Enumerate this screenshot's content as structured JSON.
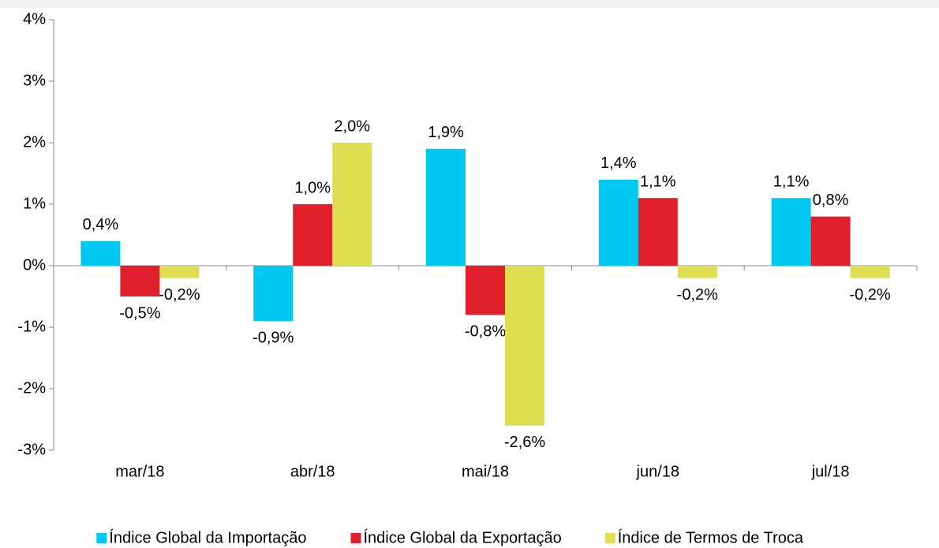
{
  "chart_data": {
    "type": "bar",
    "categories": [
      "mar/18",
      "abr/18",
      "mai/18",
      "jun/18",
      "jul/18"
    ],
    "series": [
      {
        "name": "Índice Global da Importação",
        "color": "#00c8f0",
        "values": [
          0.4,
          -0.9,
          1.9,
          1.4,
          1.1
        ],
        "value_labels": [
          "0,4%",
          "-0,9%",
          "1,9%",
          "1,4%",
          "1,1%"
        ]
      },
      {
        "name": "Índice Global da Exportação",
        "color": "#e0202a",
        "values": [
          -0.5,
          1.0,
          -0.8,
          1.1,
          0.8
        ],
        "value_labels": [
          "-0,5%",
          "1,0%",
          "-0,8%",
          "1,1%",
          "0,8%"
        ]
      },
      {
        "name": "Índice de Termos de Troca",
        "color": "#dede50",
        "values": [
          -0.2,
          2.0,
          -2.6,
          -0.2,
          -0.2
        ],
        "value_labels": [
          "-0,2%",
          "2,0%",
          "-2,6%",
          "-0,2%",
          "-0,2%"
        ]
      }
    ],
    "ylim": [
      -3,
      4
    ],
    "yticks": [
      {
        "value": -3,
        "label": "-3%"
      },
      {
        "value": -2,
        "label": "-2%"
      },
      {
        "value": -1,
        "label": "-1%"
      },
      {
        "value": 0,
        "label": "0%"
      },
      {
        "value": 1,
        "label": "1%"
      },
      {
        "value": 2,
        "label": "2%"
      },
      {
        "value": 3,
        "label": "3%"
      },
      {
        "value": 4,
        "label": "4%"
      }
    ],
    "legend": "bottom"
  }
}
